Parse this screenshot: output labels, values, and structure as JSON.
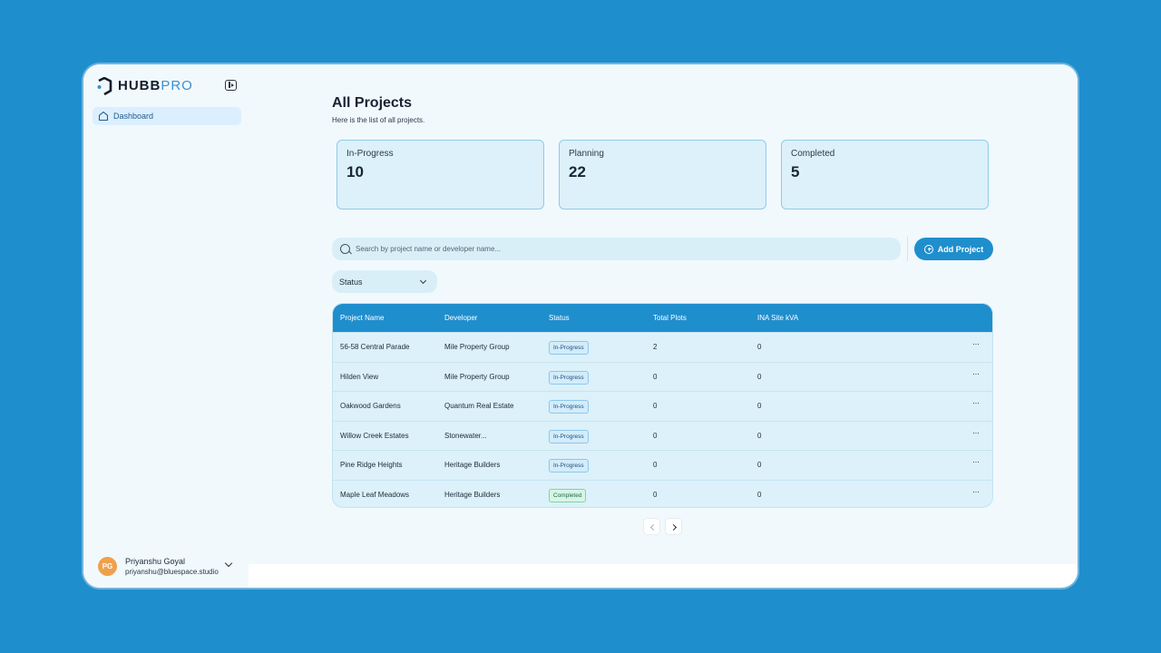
{
  "app": {
    "logo_bold": "HUBB",
    "logo_light": "PRO"
  },
  "sidebar": {
    "items": [
      {
        "label": "Dashboard",
        "icon": "home-icon"
      }
    ],
    "user": {
      "initials": "PG",
      "name": "Priyanshu Goyal",
      "email": "priyanshu@bluespace.studio"
    }
  },
  "page": {
    "title": "All Projects",
    "subtitle": "Here is the list of all projects."
  },
  "stats": [
    {
      "label": "In-Progress",
      "value": "10"
    },
    {
      "label": "Planning",
      "value": "22"
    },
    {
      "label": "Completed",
      "value": "5"
    }
  ],
  "search": {
    "placeholder": "Search by project name or developer name..."
  },
  "add_button": {
    "label": "Add Project"
  },
  "filter": {
    "status_label": "Status"
  },
  "table": {
    "columns": [
      "Project Name",
      "Developer",
      "Status",
      "Total Plots",
      "INA Site kVA"
    ],
    "rows": [
      {
        "name": "56-58 Central Parade",
        "developer": "Mile Property Group",
        "status": "In-Progress",
        "plots": "2",
        "kva": "0"
      },
      {
        "name": "Hilden View",
        "developer": "Mile Property Group",
        "status": "In-Progress",
        "plots": "0",
        "kva": "0"
      },
      {
        "name": "Oakwood Gardens",
        "developer": "Quantum Real Estate",
        "status": "In-Progress",
        "plots": "0",
        "kva": "0"
      },
      {
        "name": "Willow Creek Estates",
        "developer": "Stonewater...",
        "status": "In-Progress",
        "plots": "0",
        "kva": "0"
      },
      {
        "name": "Pine Ridge Heights",
        "developer": "Heritage Builders",
        "status": "In-Progress",
        "plots": "0",
        "kva": "0"
      },
      {
        "name": "Maple Leaf Meadows",
        "developer": "Heritage Builders",
        "status": "Completed",
        "plots": "0",
        "kva": "0"
      }
    ],
    "row_menu": "···"
  },
  "colors": {
    "accent": "#1f8ecd",
    "background": "#f1f9fd",
    "card": "#dcf1f9",
    "avatar": "#f0a04b"
  }
}
